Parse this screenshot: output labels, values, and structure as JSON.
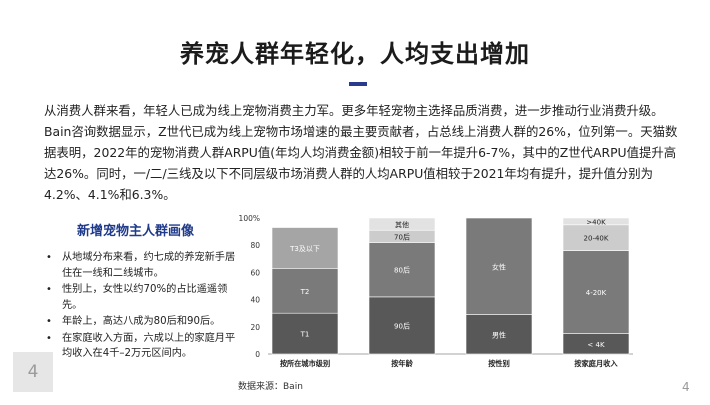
{
  "title": "养宠人群年轻化，人均支出增加",
  "paragraph": "从消费人群来看，年轻人已成为线上宠物消费主力军。更多年轻宠物主选择品质消费，进一步推动行业消费升级。Bain咨询数据显示，Z世代已成为线上宠物市场增速的最主要贡献者，占总线上消费人群的26%，位列第一。天猫数据表明，2022年的宠物消费人群ARPU值(年均人均消费金额)相较于前一年提升6-7%，其中的Z世代ARPU值提升高达26%。同时，一/二/三线及以下不同层级市场消费人群的人均ARPU值相较于2021年均有提升，提升值分别为4.2%、4.1%和6.3%。",
  "left_heading": "新增宠物主人群画像",
  "bullets": [
    "从地域分布来看，约七成的养宠新手居住在一线和二线城市。",
    "性别上，女性以约70%的占比遥遥领先。",
    "年龄上，高达八成为80后和90后。",
    "在家庭收入方面，六成以上的家庭月平均收入在4千–2万元区间内。"
  ],
  "source": "数据来源：Bain",
  "slide_number": "4",
  "page_number": "4",
  "colors": {
    "title_accent": "#2a3a8c",
    "heading_blue": "#1f3a8a",
    "bar_dark": "#585858",
    "bar_mid": "#7a7a7a",
    "bar_light": "#a5a5a5",
    "bar_lighter": "#cccccc",
    "bar_lightest": "#e2e2e2"
  },
  "chart_data": {
    "type": "bar",
    "stacked": true,
    "categories": [
      "按所在城市级别",
      "按年龄",
      "按性别",
      "按家庭月收入"
    ],
    "yticks": [
      "0",
      "20",
      "40",
      "60",
      "80",
      "100%"
    ],
    "ylim": [
      0,
      100
    ],
    "stacks": [
      [
        {
          "label": "T1",
          "value": 30
        },
        {
          "label": "T2",
          "value": 33
        },
        {
          "label": "T3及以下",
          "value": 30
        }
      ],
      [
        {
          "label": "90后",
          "value": 42
        },
        {
          "label": "80后",
          "value": 40
        },
        {
          "label": "70后",
          "value": 9
        },
        {
          "label": "其他",
          "value": 9
        }
      ],
      [
        {
          "label": "男性",
          "value": 29
        },
        {
          "label": "女性",
          "value": 71
        }
      ],
      [
        {
          "label": "< 4K",
          "value": 15
        },
        {
          "label": "4-20K",
          "value": 61
        },
        {
          "label": "20-40K",
          "value": 19
        },
        {
          "label": ">40K",
          "value": 5
        }
      ]
    ]
  }
}
